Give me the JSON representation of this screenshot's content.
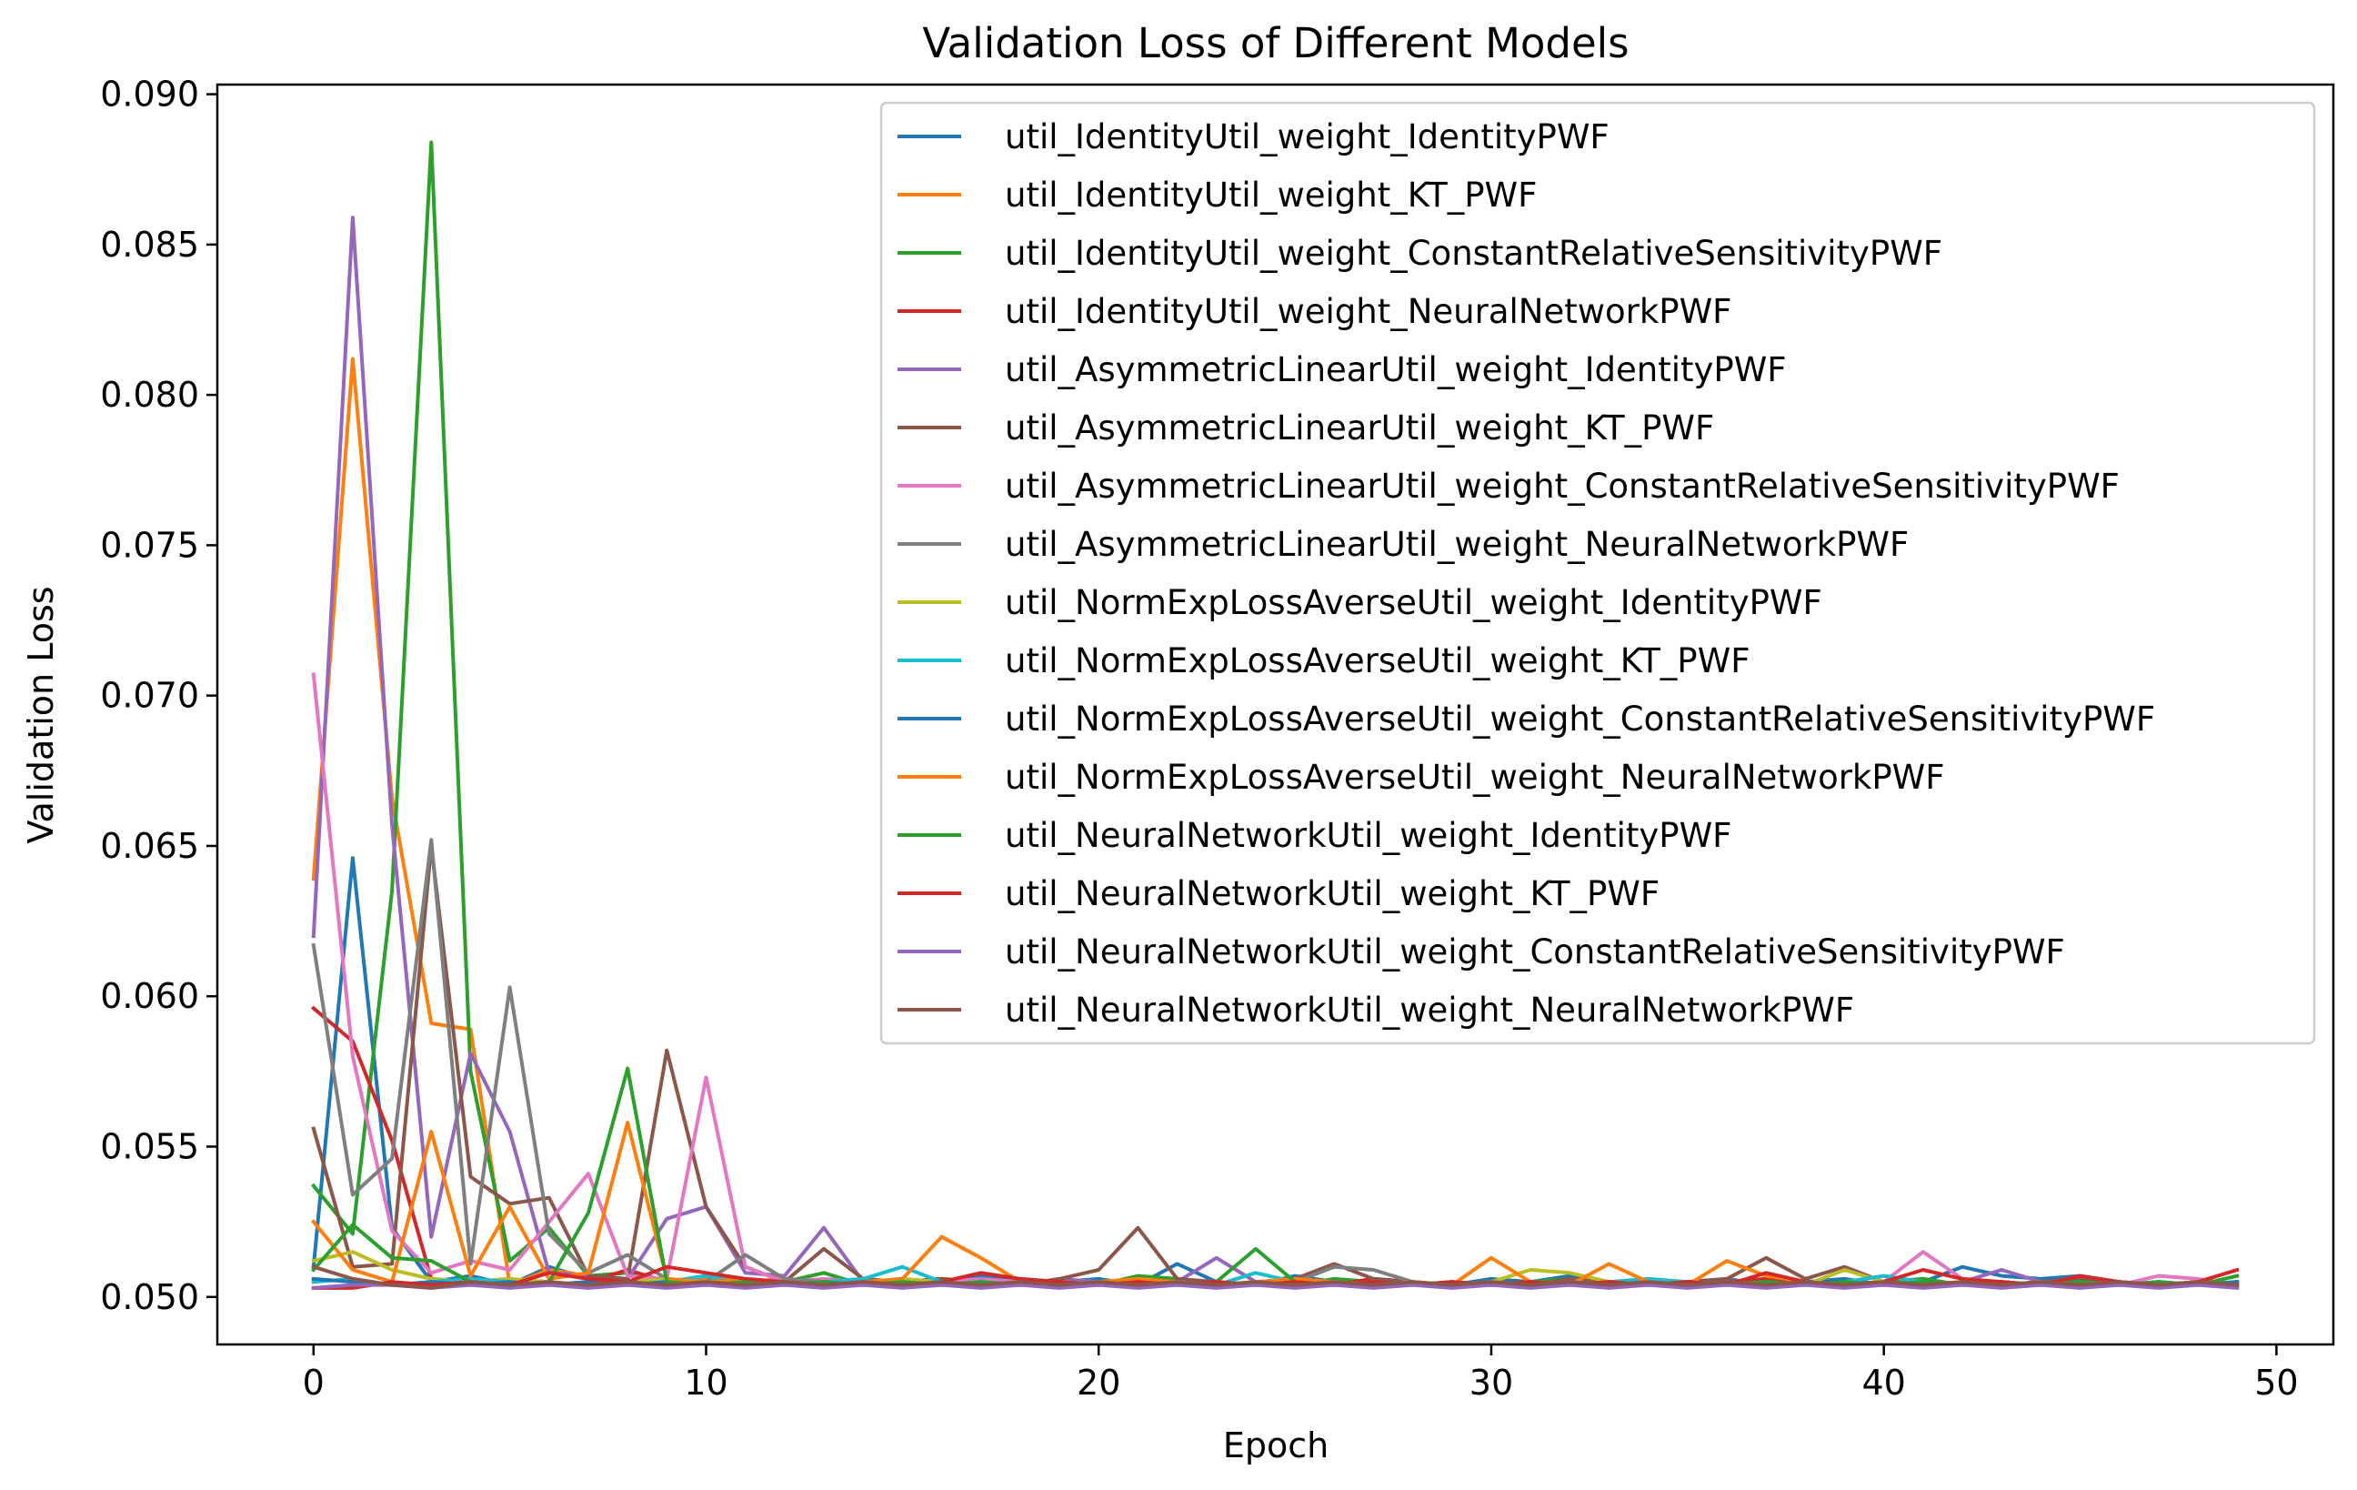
{
  "chart_data": {
    "type": "line",
    "title": "Validation Loss of Different Models",
    "xlabel": "Epoch",
    "ylabel": "Validation Loss",
    "xlim": [
      -2.45,
      51.45
    ],
    "ylim": [
      0.04842,
      0.09032
    ],
    "xticks": [
      0,
      10,
      20,
      30,
      40,
      50
    ],
    "yticks": [
      0.05,
      0.055,
      0.06,
      0.065,
      0.07,
      0.075,
      0.08,
      0.085,
      0.09
    ],
    "ytick_labels": [
      "0.050",
      "0.055",
      "0.060",
      "0.065",
      "0.070",
      "0.075",
      "0.080",
      "0.085",
      "0.090"
    ],
    "grid": false,
    "legend_position": "upper right",
    "x": [
      0,
      1,
      2,
      3,
      4,
      5,
      6,
      7,
      8,
      9,
      10,
      11,
      12,
      13,
      14,
      15,
      16,
      17,
      18,
      19,
      20,
      21,
      22,
      23,
      24,
      25,
      26,
      27,
      28,
      29,
      30,
      31,
      32,
      33,
      34,
      35,
      36,
      37,
      38,
      39,
      40,
      41,
      42,
      43,
      44,
      45,
      46,
      47,
      48,
      49
    ],
    "series": [
      {
        "name": "util_IdentityUtil_weight_IdentityPWF",
        "color": "#1f77b4",
        "values": [
          0.051,
          0.0646,
          0.0523,
          0.0505,
          0.0507,
          0.0504,
          0.051,
          0.0506,
          0.0505,
          0.0504,
          0.0506,
          0.0505,
          0.0504,
          0.0505,
          0.0506,
          0.0504,
          0.0505,
          0.0507,
          0.0506,
          0.0505,
          0.0506,
          0.0504,
          0.0511,
          0.0505,
          0.0504,
          0.0507,
          0.0505,
          0.0504,
          0.0505,
          0.0504,
          0.0506,
          0.0505,
          0.0507,
          0.0505,
          0.0504,
          0.0505,
          0.0506,
          0.0504,
          0.0505,
          0.0506,
          0.0504,
          0.0505,
          0.051,
          0.0507,
          0.0506,
          0.0507,
          0.0505,
          0.0504,
          0.0505,
          0.0504
        ]
      },
      {
        "name": "util_IdentityUtil_weight_KT_PWF",
        "color": "#ff7f0e",
        "values": [
          0.0639,
          0.0812,
          0.0666,
          0.0591,
          0.0589,
          0.0504,
          0.0509,
          0.0507,
          0.0505,
          0.0505,
          0.0506,
          0.0505,
          0.0506,
          0.0505,
          0.0505,
          0.0504,
          0.0505,
          0.0504,
          0.0505,
          0.0504,
          0.0505,
          0.0506,
          0.0504,
          0.0505,
          0.0504,
          0.0505,
          0.0504,
          0.0506,
          0.0505,
          0.0504,
          0.0505,
          0.0504,
          0.0505,
          0.0504,
          0.0505,
          0.0504,
          0.0505,
          0.0506,
          0.0505,
          0.0504,
          0.0505,
          0.0504,
          0.0505,
          0.0504,
          0.0505,
          0.0504,
          0.0505,
          0.0504,
          0.0505,
          0.0504
        ]
      },
      {
        "name": "util_IdentityUtil_weight_ConstantRelativeSensitivityPWF",
        "color": "#2ca02c",
        "values": [
          0.0537,
          0.0521,
          0.0635,
          0.0884,
          0.0575,
          0.0512,
          0.0523,
          0.0507,
          0.0508,
          0.0505,
          0.0507,
          0.0504,
          0.0505,
          0.0508,
          0.0504,
          0.0505,
          0.0506,
          0.0505,
          0.0504,
          0.0505,
          0.0504,
          0.0507,
          0.0506,
          0.0504,
          0.0505,
          0.0504,
          0.0506,
          0.0505,
          0.0504,
          0.0505,
          0.0504,
          0.0505,
          0.0506,
          0.0504,
          0.0505,
          0.0504,
          0.0505,
          0.0504,
          0.0505,
          0.0504,
          0.0505,
          0.0506,
          0.0504,
          0.0505,
          0.0504,
          0.0505,
          0.0504,
          0.0505,
          0.0504,
          0.0505
        ]
      },
      {
        "name": "util_IdentityUtil_weight_NeuralNetworkPWF",
        "color": "#d62728",
        "values": [
          0.0596,
          0.0585,
          0.0552,
          0.0506,
          0.0505,
          0.0506,
          0.0504,
          0.0505,
          0.0509,
          0.0505,
          0.0504,
          0.0505,
          0.0504,
          0.0505,
          0.0504,
          0.0505,
          0.0506,
          0.0505,
          0.0504,
          0.0505,
          0.0504,
          0.0505,
          0.0504,
          0.0505,
          0.0504,
          0.0505,
          0.0504,
          0.0506,
          0.0505,
          0.0504,
          0.0505,
          0.0504,
          0.0505,
          0.0504,
          0.0505,
          0.0504,
          0.0505,
          0.0506,
          0.0505,
          0.0504,
          0.0505,
          0.0504,
          0.0505,
          0.0504,
          0.0505,
          0.0504,
          0.0505,
          0.0504,
          0.0505,
          0.0504
        ]
      },
      {
        "name": "util_AsymmetricLinearUtil_weight_IdentityPWF",
        "color": "#9467bd",
        "values": [
          0.062,
          0.0859,
          0.0657,
          0.052,
          0.0581,
          0.0555,
          0.0508,
          0.0507,
          0.0506,
          0.0526,
          0.053,
          0.0508,
          0.0507,
          0.0523,
          0.0505,
          0.0504,
          0.0506,
          0.0505,
          0.0504,
          0.0506,
          0.0505,
          0.0504,
          0.0505,
          0.0513,
          0.0505,
          0.0504,
          0.0505,
          0.0504,
          0.0505,
          0.0504,
          0.0505,
          0.0504,
          0.0505,
          0.0504,
          0.0505,
          0.0504,
          0.0505,
          0.0504,
          0.0505,
          0.0504,
          0.0505,
          0.0504,
          0.0505,
          0.0509,
          0.0505,
          0.0504,
          0.0505,
          0.0504,
          0.0505,
          0.0504
        ]
      },
      {
        "name": "util_AsymmetricLinearUtil_weight_KT_PWF",
        "color": "#8c564b",
        "values": [
          0.0556,
          0.051,
          0.0511,
          0.065,
          0.054,
          0.0531,
          0.0533,
          0.0507,
          0.0506,
          0.0582,
          0.053,
          0.051,
          0.0505,
          0.0516,
          0.0506,
          0.0505,
          0.0506,
          0.0505,
          0.0504,
          0.0506,
          0.0509,
          0.0523,
          0.0506,
          0.0505,
          0.0504,
          0.0506,
          0.0511,
          0.0506,
          0.0505,
          0.0504,
          0.0505,
          0.0504,
          0.0506,
          0.0505,
          0.0504,
          0.0505,
          0.0506,
          0.0513,
          0.0506,
          0.051,
          0.0505,
          0.0504,
          0.0505,
          0.0504,
          0.0505,
          0.0506,
          0.0505,
          0.0504,
          0.0505,
          0.0504
        ]
      },
      {
        "name": "util_AsymmetricLinearUtil_weight_ConstantRelativeSensitivityPWF",
        "color": "#e377c2",
        "values": [
          0.0707,
          0.058,
          0.0522,
          0.0508,
          0.0512,
          0.0509,
          0.0525,
          0.0541,
          0.0507,
          0.0506,
          0.0573,
          0.051,
          0.0505,
          0.0506,
          0.0505,
          0.0504,
          0.0505,
          0.0506,
          0.0505,
          0.0504,
          0.0505,
          0.0504,
          0.0505,
          0.0504,
          0.0505,
          0.0504,
          0.0505,
          0.0504,
          0.0505,
          0.0504,
          0.0505,
          0.0504,
          0.0505,
          0.0504,
          0.0505,
          0.0504,
          0.0505,
          0.0504,
          0.0505,
          0.0504,
          0.0505,
          0.0515,
          0.0506,
          0.0505,
          0.0504,
          0.0505,
          0.0504,
          0.0507,
          0.0506,
          0.0504
        ]
      },
      {
        "name": "util_AsymmetricLinearUtil_weight_NeuralNetworkPWF",
        "color": "#7f7f7f",
        "values": [
          0.0617,
          0.0534,
          0.0546,
          0.0652,
          0.0511,
          0.0603,
          0.0521,
          0.0508,
          0.0514,
          0.0506,
          0.0505,
          0.0514,
          0.0506,
          0.0505,
          0.0504,
          0.0505,
          0.0504,
          0.0505,
          0.0504,
          0.0505,
          0.0504,
          0.0505,
          0.0504,
          0.0505,
          0.0504,
          0.0505,
          0.051,
          0.0509,
          0.0505,
          0.0504,
          0.0505,
          0.0504,
          0.0505,
          0.0504,
          0.0505,
          0.0504,
          0.0505,
          0.0504,
          0.0505,
          0.0504,
          0.0505,
          0.0504,
          0.0505,
          0.0504,
          0.0505,
          0.0504,
          0.0505,
          0.0504,
          0.0505,
          0.0504
        ]
      },
      {
        "name": "util_NormExpLossAverseUtil_weight_IdentityPWF",
        "color": "#bcbd22",
        "values": [
          0.0512,
          0.0515,
          0.0509,
          0.0506,
          0.0505,
          0.0506,
          0.0505,
          0.0504,
          0.0505,
          0.0506,
          0.0505,
          0.0504,
          0.0505,
          0.0504,
          0.0505,
          0.0506,
          0.0505,
          0.0504,
          0.0505,
          0.0504,
          0.0505,
          0.0504,
          0.0505,
          0.0504,
          0.0505,
          0.0504,
          0.0505,
          0.0504,
          0.0505,
          0.0504,
          0.0505,
          0.0509,
          0.0508,
          0.0505,
          0.0504,
          0.0505,
          0.0504,
          0.0505,
          0.0504,
          0.0509,
          0.0505,
          0.0504,
          0.0505,
          0.0504,
          0.0505,
          0.0504,
          0.0505,
          0.0504,
          0.0505,
          0.0504
        ]
      },
      {
        "name": "util_NormExpLossAverseUtil_weight_KT_PWF",
        "color": "#17becf",
        "values": [
          0.0505,
          0.0506,
          0.0504,
          0.0505,
          0.0506,
          0.0505,
          0.0504,
          0.0505,
          0.0504,
          0.0505,
          0.0507,
          0.0505,
          0.0504,
          0.0505,
          0.0506,
          0.051,
          0.0505,
          0.0504,
          0.0505,
          0.0504,
          0.0505,
          0.0504,
          0.0505,
          0.0504,
          0.0508,
          0.0505,
          0.0504,
          0.0505,
          0.0504,
          0.0505,
          0.0504,
          0.0505,
          0.0504,
          0.0505,
          0.0506,
          0.0505,
          0.0504,
          0.0505,
          0.0504,
          0.0505,
          0.0507,
          0.0505,
          0.0504,
          0.0505,
          0.0504,
          0.0505,
          0.0504,
          0.0505,
          0.0504,
          0.0505
        ]
      },
      {
        "name": "util_NormExpLossAverseUtil_weight_ConstantRelativeSensitivityPWF",
        "color": "#1f77b4",
        "values": [
          0.0506,
          0.0505,
          0.0504,
          0.0505,
          0.0504,
          0.0505,
          0.0504,
          0.0505,
          0.0504,
          0.0505,
          0.0504,
          0.0505,
          0.0504,
          0.0505,
          0.0504,
          0.0505,
          0.0504,
          0.0505,
          0.0504,
          0.0505,
          0.0504,
          0.0505,
          0.0504,
          0.0505,
          0.0504,
          0.0505,
          0.0504,
          0.0505,
          0.0504,
          0.0505,
          0.0504,
          0.0505,
          0.0504,
          0.0505,
          0.0504,
          0.0505,
          0.0504,
          0.0505,
          0.0504,
          0.0505,
          0.0504,
          0.0505,
          0.0504,
          0.0505,
          0.0504,
          0.0505,
          0.0504,
          0.0505,
          0.0504,
          0.0505
        ]
      },
      {
        "name": "util_NormExpLossAverseUtil_weight_NeuralNetworkPWF",
        "color": "#ff7f0e",
        "values": [
          0.0525,
          0.0509,
          0.0505,
          0.0555,
          0.0507,
          0.053,
          0.0506,
          0.0508,
          0.0558,
          0.0506,
          0.0505,
          0.0506,
          0.0505,
          0.0504,
          0.0505,
          0.0506,
          0.052,
          0.0513,
          0.0505,
          0.0504,
          0.0505,
          0.0506,
          0.0505,
          0.0504,
          0.0505,
          0.0506,
          0.0505,
          0.0504,
          0.0505,
          0.0504,
          0.0513,
          0.0505,
          0.0504,
          0.0511,
          0.0505,
          0.0504,
          0.0512,
          0.0507,
          0.0505,
          0.0504,
          0.0505,
          0.0504,
          0.0505,
          0.0504,
          0.0505,
          0.0504,
          0.0505,
          0.0504,
          0.0505,
          0.0504
        ]
      },
      {
        "name": "util_NeuralNetworkUtil_weight_IdentityPWF",
        "color": "#2ca02c",
        "values": [
          0.0509,
          0.0524,
          0.0513,
          0.0512,
          0.0505,
          0.0504,
          0.0505,
          0.0528,
          0.0576,
          0.0505,
          0.0504,
          0.0505,
          0.0504,
          0.0505,
          0.0504,
          0.0505,
          0.0504,
          0.0505,
          0.0504,
          0.0505,
          0.0504,
          0.0505,
          0.0504,
          0.0505,
          0.0516,
          0.0505,
          0.0504,
          0.0505,
          0.0504,
          0.0505,
          0.0504,
          0.0505,
          0.0504,
          0.0505,
          0.0504,
          0.0505,
          0.0504,
          0.0505,
          0.0504,
          0.0505,
          0.0504,
          0.0505,
          0.0504,
          0.0505,
          0.0504,
          0.0505,
          0.0504,
          0.0505,
          0.0504,
          0.0507
        ]
      },
      {
        "name": "util_NeuralNetworkUtil_weight_KT_PWF",
        "color": "#d62728",
        "values": [
          0.0503,
          0.0503,
          0.0505,
          0.0504,
          0.0505,
          0.0504,
          0.0508,
          0.0506,
          0.0505,
          0.051,
          0.0508,
          0.0506,
          0.0505,
          0.0504,
          0.0505,
          0.0504,
          0.0505,
          0.0508,
          0.0506,
          0.0505,
          0.0504,
          0.0505,
          0.0504,
          0.0505,
          0.0504,
          0.0505,
          0.0504,
          0.0505,
          0.0504,
          0.0505,
          0.0504,
          0.0505,
          0.0504,
          0.0505,
          0.0504,
          0.0505,
          0.0504,
          0.0508,
          0.0505,
          0.0504,
          0.0505,
          0.0509,
          0.0506,
          0.0505,
          0.0504,
          0.0507,
          0.0505,
          0.0504,
          0.0505,
          0.0509
        ]
      },
      {
        "name": "util_NeuralNetworkUtil_weight_ConstantRelativeSensitivityPWF",
        "color": "#9467bd",
        "values": [
          0.0503,
          0.0504,
          0.0504,
          0.0503,
          0.0504,
          0.0503,
          0.0504,
          0.0503,
          0.0504,
          0.0503,
          0.0504,
          0.0503,
          0.0504,
          0.0503,
          0.0504,
          0.0503,
          0.0504,
          0.0503,
          0.0504,
          0.0503,
          0.0504,
          0.0503,
          0.0504,
          0.0503,
          0.0504,
          0.0503,
          0.0504,
          0.0503,
          0.0504,
          0.0503,
          0.0504,
          0.0503,
          0.0504,
          0.0503,
          0.0504,
          0.0503,
          0.0504,
          0.0503,
          0.0504,
          0.0503,
          0.0504,
          0.0503,
          0.0504,
          0.0503,
          0.0504,
          0.0503,
          0.0504,
          0.0503,
          0.0504,
          0.0503
        ]
      },
      {
        "name": "util_NeuralNetworkUtil_weight_NeuralNetworkPWF",
        "color": "#8c564b",
        "values": [
          0.051,
          0.0506,
          0.0504,
          0.0503,
          0.0505,
          0.0504,
          0.0505,
          0.0504,
          0.0505,
          0.0504,
          0.0505,
          0.0504,
          0.0505,
          0.0504,
          0.0505,
          0.0504,
          0.0505,
          0.0504,
          0.0505,
          0.0504,
          0.0505,
          0.0504,
          0.0505,
          0.0504,
          0.0505,
          0.0504,
          0.0505,
          0.0504,
          0.0505,
          0.0504,
          0.0505,
          0.0504,
          0.0505,
          0.0504,
          0.0505,
          0.0504,
          0.0505,
          0.0504,
          0.0505,
          0.0504,
          0.0505,
          0.0504,
          0.0505,
          0.0504,
          0.0505,
          0.0504,
          0.0505,
          0.0504,
          0.0505,
          0.0504
        ]
      }
    ]
  }
}
